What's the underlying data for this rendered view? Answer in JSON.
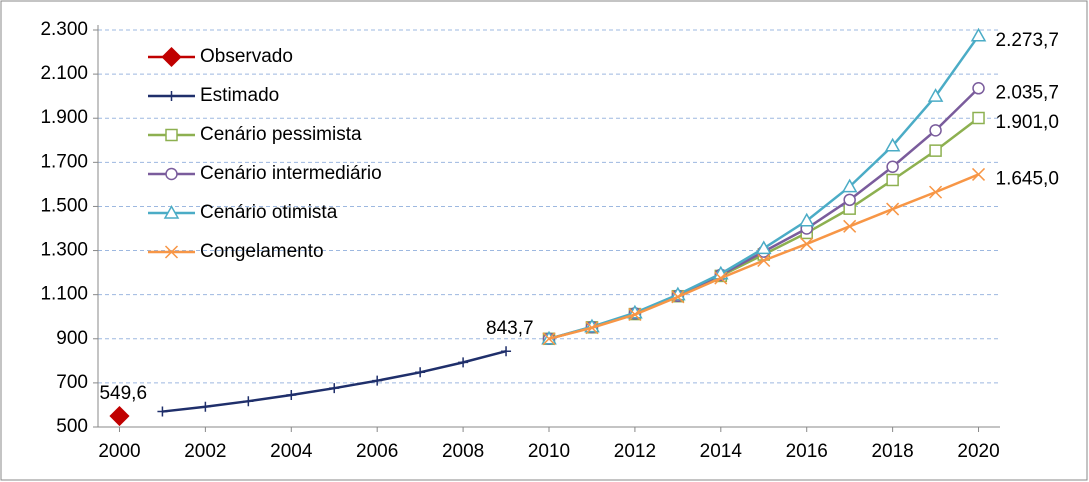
{
  "chart_data": {
    "type": "line",
    "xlim": [
      1999.5,
      2020.5
    ],
    "xticks": [
      2000,
      2002,
      2004,
      2006,
      2008,
      2010,
      2012,
      2014,
      2016,
      2018,
      2020
    ],
    "ylim": [
      500,
      2300
    ],
    "yticks": [
      500,
      700,
      900,
      {
        "value": 1100,
        "label": "1.100"
      },
      {
        "value": 1300,
        "label": "1.300"
      },
      {
        "value": 1500,
        "label": "1.500"
      },
      {
        "value": 1700,
        "label": "1.700"
      },
      {
        "value": 1900,
        "label": "1.900"
      },
      {
        "value": 2100,
        "label": "2.100"
      },
      {
        "value": 2300,
        "label": "2.300"
      }
    ],
    "grid": true,
    "legend": "top-left",
    "series": [
      {
        "name": "Observado",
        "color": "#c00000",
        "marker": "diamond",
        "x": [
          2000
        ],
        "values": [
          549.6
        ],
        "value_labels": [
          "549,6"
        ]
      },
      {
        "name": "Estimado",
        "color": "#1f2f6b",
        "marker": "plus",
        "x": [
          2001,
          2002,
          2003,
          2004,
          2005,
          2006,
          2007,
          2008,
          2009
        ],
        "values": [
          570,
          592,
          617,
          645,
          676,
          710,
          748,
          793,
          843.7
        ],
        "value_labels": [
          null,
          null,
          null,
          null,
          null,
          null,
          null,
          null,
          "843,7"
        ]
      },
      {
        "name": "Cenário pessimista",
        "color": "#8db050",
        "marker": "square",
        "x": [
          2010,
          2011,
          2012,
          2013,
          2014,
          2015,
          2016,
          2017,
          2018,
          2019,
          2020
        ],
        "values": [
          900,
          952,
          1012,
          1093,
          1185,
          1282,
          1380,
          1490,
          1620,
          1753,
          1901.0
        ],
        "value_labels": [
          null,
          null,
          null,
          null,
          null,
          null,
          null,
          null,
          null,
          null,
          "1.901,0"
        ]
      },
      {
        "name": "Cenário intermediário",
        "color": "#7a5c9c",
        "marker": "circle",
        "x": [
          2010,
          2011,
          2012,
          2013,
          2014,
          2015,
          2016,
          2017,
          2018,
          2019,
          2020
        ],
        "values": [
          900,
          953,
          1015,
          1095,
          1190,
          1295,
          1400,
          1530,
          1680,
          1845,
          2035.7
        ],
        "value_labels": [
          null,
          null,
          null,
          null,
          null,
          null,
          null,
          null,
          null,
          null,
          "2.035,7"
        ]
      },
      {
        "name": "Cenário otimista",
        "color": "#4bacc6",
        "marker": "triangle",
        "x": [
          2010,
          2011,
          2012,
          2013,
          2014,
          2015,
          2016,
          2017,
          2018,
          2019,
          2020
        ],
        "values": [
          900,
          955,
          1018,
          1100,
          1195,
          1310,
          1435,
          1590,
          1775,
          2000,
          2273.7
        ],
        "value_labels": [
          null,
          null,
          null,
          null,
          null,
          null,
          null,
          null,
          null,
          null,
          "2.273,7"
        ]
      },
      {
        "name": "Congelamento",
        "color": "#f79646",
        "marker": "cross",
        "x": [
          2010,
          2011,
          2012,
          2013,
          2014,
          2015,
          2016,
          2017,
          2018,
          2019,
          2020
        ],
        "values": [
          900,
          950,
          1010,
          1090,
          1175,
          1255,
          1330,
          1410,
          1488,
          1565,
          1645.0
        ],
        "value_labels": [
          null,
          null,
          null,
          null,
          null,
          null,
          null,
          null,
          null,
          null,
          "1.645,0"
        ]
      }
    ]
  }
}
